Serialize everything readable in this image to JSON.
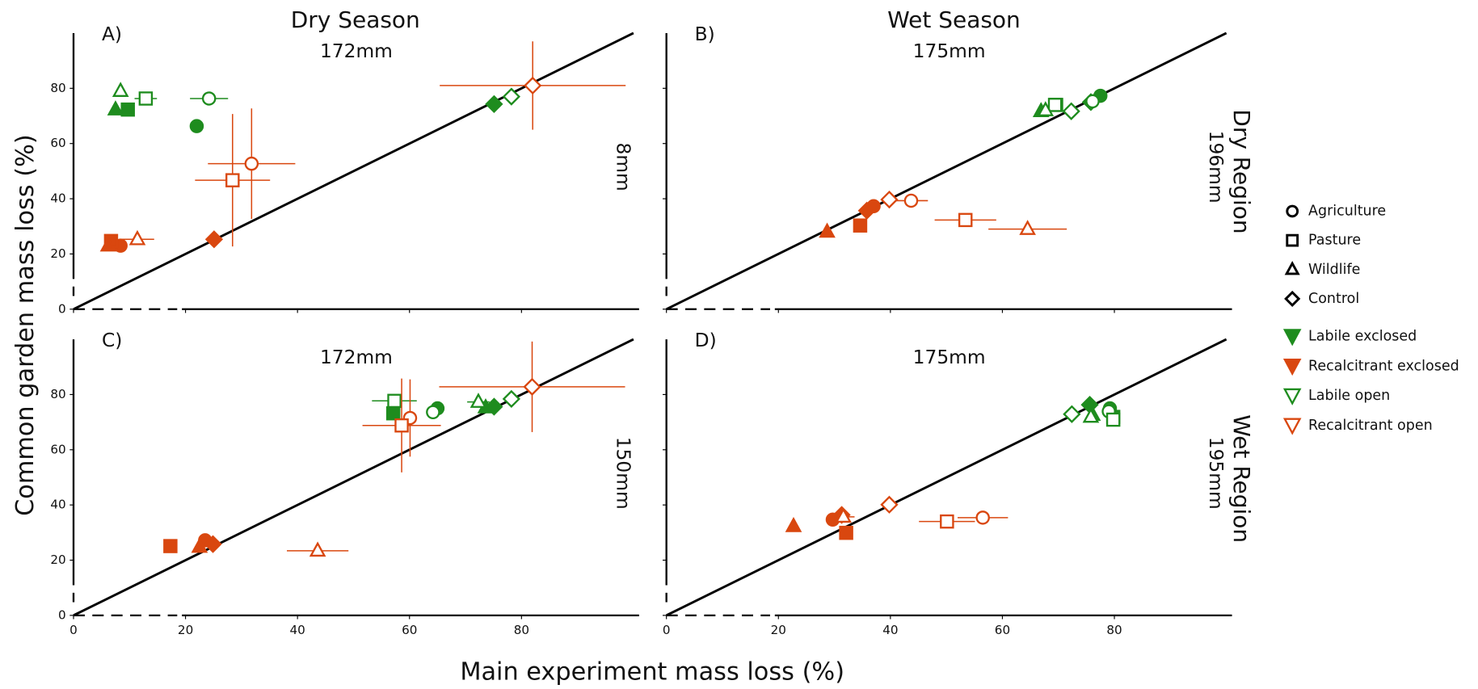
{
  "chart_data": {
    "type": "scatter",
    "x_label": "Main experiment mass loss (%)",
    "y_label": "Common garden mass loss (%)",
    "column_titles": [
      "Dry Season",
      "Wet Season"
    ],
    "row_titles": [
      "Dry Region",
      "Wet Region"
    ],
    "xlim": [
      0,
      101
    ],
    "ylim": [
      0,
      100
    ],
    "xticks": [
      0,
      20,
      40,
      60,
      80
    ],
    "yticks": [
      0,
      20,
      40,
      60,
      80
    ],
    "shapes": [
      "Agriculture",
      "Pasture",
      "Wildlife",
      "Control"
    ],
    "series": [
      {
        "name": "Labile exclosed",
        "color": "#1e8c1e",
        "filled": true
      },
      {
        "name": "Recalcitrant exclosed",
        "color": "#d9470f",
        "filled": true
      },
      {
        "name": "Labile open",
        "color": "#1e8c1e",
        "filled": false
      },
      {
        "name": "Recalcitrant open",
        "color": "#d9470f",
        "filled": false
      }
    ],
    "panels": [
      {
        "label": "A)",
        "top_note": "172mm",
        "side_note": "8mm",
        "series": [
          [
            {
              "x": 22,
              "y": 66.3
            },
            {
              "x": 9.7,
              "y": 72.3
            },
            {
              "x": 7.5,
              "y": 72.3
            },
            {
              "x": 75.1,
              "y": 74.3
            }
          ],
          [
            {
              "x": 8.4,
              "y": 23,
              "yerr": 2
            },
            {
              "x": 6.7,
              "y": 24.7
            },
            {
              "x": 6.2,
              "y": 23
            },
            {
              "x": 25.1,
              "y": 25.3
            }
          ],
          [
            {
              "x": 24.2,
              "y": 76.3,
              "xerr": 3.4
            },
            {
              "x": 12.9,
              "y": 76.3,
              "xerr": 2
            },
            {
              "x": 8.4,
              "y": 79
            },
            {
              "x": 78.2,
              "y": 77
            }
          ],
          [
            {
              "x": 31.8,
              "y": 52.7,
              "xerr": 7.8,
              "yerr": 20
            },
            {
              "x": 28.4,
              "y": 46.7,
              "xerr": 6.7,
              "yerr": 24
            },
            {
              "x": 11.4,
              "y": 25.3,
              "xerr": 3
            },
            {
              "x": 82,
              "y": 81,
              "xerr": 16.6,
              "yerr": 16
            }
          ]
        ]
      },
      {
        "label": "B)",
        "top_note": "175mm",
        "side_note": "196mm",
        "series": [
          [
            {
              "x": 77.5,
              "y": 77.3
            },
            {
              "x": 69.6,
              "y": 74
            },
            {
              "x": 66.9,
              "y": 71.7
            },
            {
              "x": 75.8,
              "y": 75
            }
          ],
          [
            {
              "x": 37,
              "y": 37.3
            },
            {
              "x": 34.6,
              "y": 30.3
            },
            {
              "x": 28.7,
              "y": 28
            },
            {
              "x": 35.8,
              "y": 35.7
            }
          ],
          [
            {
              "x": 76.1,
              "y": 75.3
            },
            {
              "x": 69.4,
              "y": 74
            },
            {
              "x": 67.7,
              "y": 72
            },
            {
              "x": 72.3,
              "y": 71.7
            }
          ],
          [
            {
              "x": 43.7,
              "y": 39.3,
              "xerr": 3
            },
            {
              "x": 53.4,
              "y": 32.3,
              "xerr": 5.5
            },
            {
              "x": 64.5,
              "y": 29,
              "xerr": 7
            },
            {
              "x": 39.8,
              "y": 39.7
            }
          ]
        ]
      },
      {
        "label": "C)",
        "top_note": "172mm",
        "side_note": "150mm",
        "series": [
          [
            {
              "x": 65,
              "y": 75
            },
            {
              "x": 57.1,
              "y": 73.2
            },
            {
              "x": 73.6,
              "y": 75.3
            },
            {
              "x": 75.1,
              "y": 75.6
            }
          ],
          [
            {
              "x": 23.5,
              "y": 27.2
            },
            {
              "x": 17.3,
              "y": 25.1
            },
            {
              "x": 22.5,
              "y": 24.8
            },
            {
              "x": 24.9,
              "y": 25.8
            }
          ],
          [
            {
              "x": 64.2,
              "y": 73.6
            },
            {
              "x": 57.3,
              "y": 77.7,
              "xerr": 4
            },
            {
              "x": 72.3,
              "y": 77.3,
              "xerr": 2
            },
            {
              "x": 78.2,
              "y": 78.4
            }
          ],
          [
            {
              "x": 60.1,
              "y": 71.5,
              "yerr": 14
            },
            {
              "x": 58.6,
              "y": 68.8,
              "xerr": 7,
              "yerr": 17
            },
            {
              "x": 43.6,
              "y": 23.4,
              "xerr": 5.5
            },
            {
              "x": 81.9,
              "y": 82.8,
              "xerr": 16.6,
              "yerr": 16.4
            }
          ]
        ]
      },
      {
        "label": "D)",
        "top_note": "175mm",
        "side_note": "195mm",
        "series": [
          [
            {
              "x": 79.2,
              "y": 75
            },
            {
              "x": 79.8,
              "y": 71.9
            },
            {
              "x": 76.1,
              "y": 72.6
            },
            {
              "x": 75.6,
              "y": 76.3
            }
          ],
          [
            {
              "x": 29.7,
              "y": 34.7
            },
            {
              "x": 32.1,
              "y": 29.9
            },
            {
              "x": 22.7,
              "y": 32.3
            },
            {
              "x": 31.3,
              "y": 36.4
            }
          ],
          [
            {
              "x": 79,
              "y": 73.9
            },
            {
              "x": 79.8,
              "y": 70.9
            },
            {
              "x": 75.8,
              "y": 71.9
            },
            {
              "x": 72.4,
              "y": 72.9
            }
          ],
          [
            {
              "x": 56.5,
              "y": 35.4,
              "xerr": 4.5
            },
            {
              "x": 50.1,
              "y": 34,
              "xerr": 5
            },
            {
              "x": 31.6,
              "y": 35.7,
              "xerr": 2
            },
            {
              "x": 39.8,
              "y": 40.1
            }
          ]
        ]
      }
    ]
  }
}
